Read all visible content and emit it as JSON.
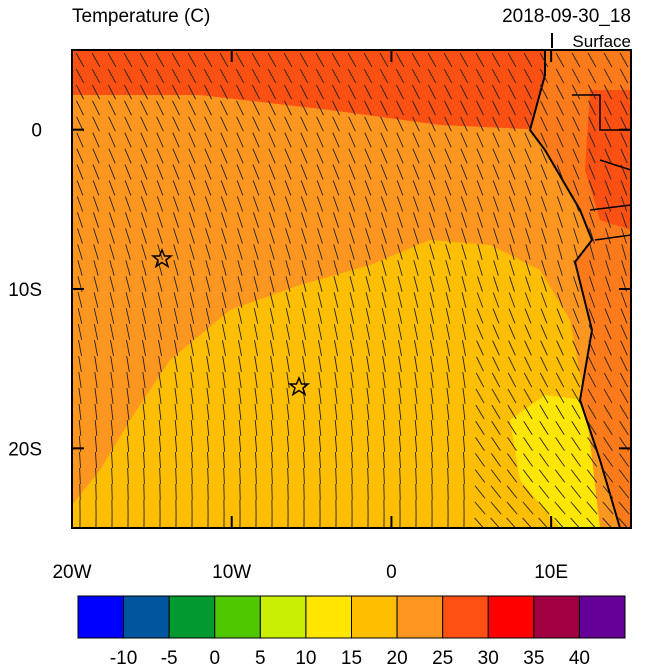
{
  "header": {
    "title": "Temperature (C)",
    "time": "2018-09-30_18",
    "level": "Surface"
  },
  "map": {
    "xlim": [
      -20,
      15
    ],
    "ylim": [
      -25,
      5
    ],
    "xticks": [
      {
        "value": -20,
        "label": "20W"
      },
      {
        "value": -10,
        "label": "10W"
      },
      {
        "value": 0,
        "label": "0"
      },
      {
        "value": 10,
        "label": "10E"
      }
    ],
    "yticks": [
      {
        "value": 0,
        "label": "0"
      },
      {
        "value": -10,
        "label": "10S"
      },
      {
        "value": -20,
        "label": "20S"
      }
    ]
  },
  "colorbar": {
    "levels": [
      -10,
      -5,
      0,
      5,
      10,
      15,
      20,
      25,
      30,
      35,
      40
    ],
    "colors": [
      "#0000ff",
      "#00559f",
      "#009a30",
      "#4fc800",
      "#c8f000",
      "#ffe600",
      "#ffbe00",
      "#ff9620",
      "#ff5014",
      "#ff0000",
      "#a00040",
      "#640096"
    ]
  }
}
